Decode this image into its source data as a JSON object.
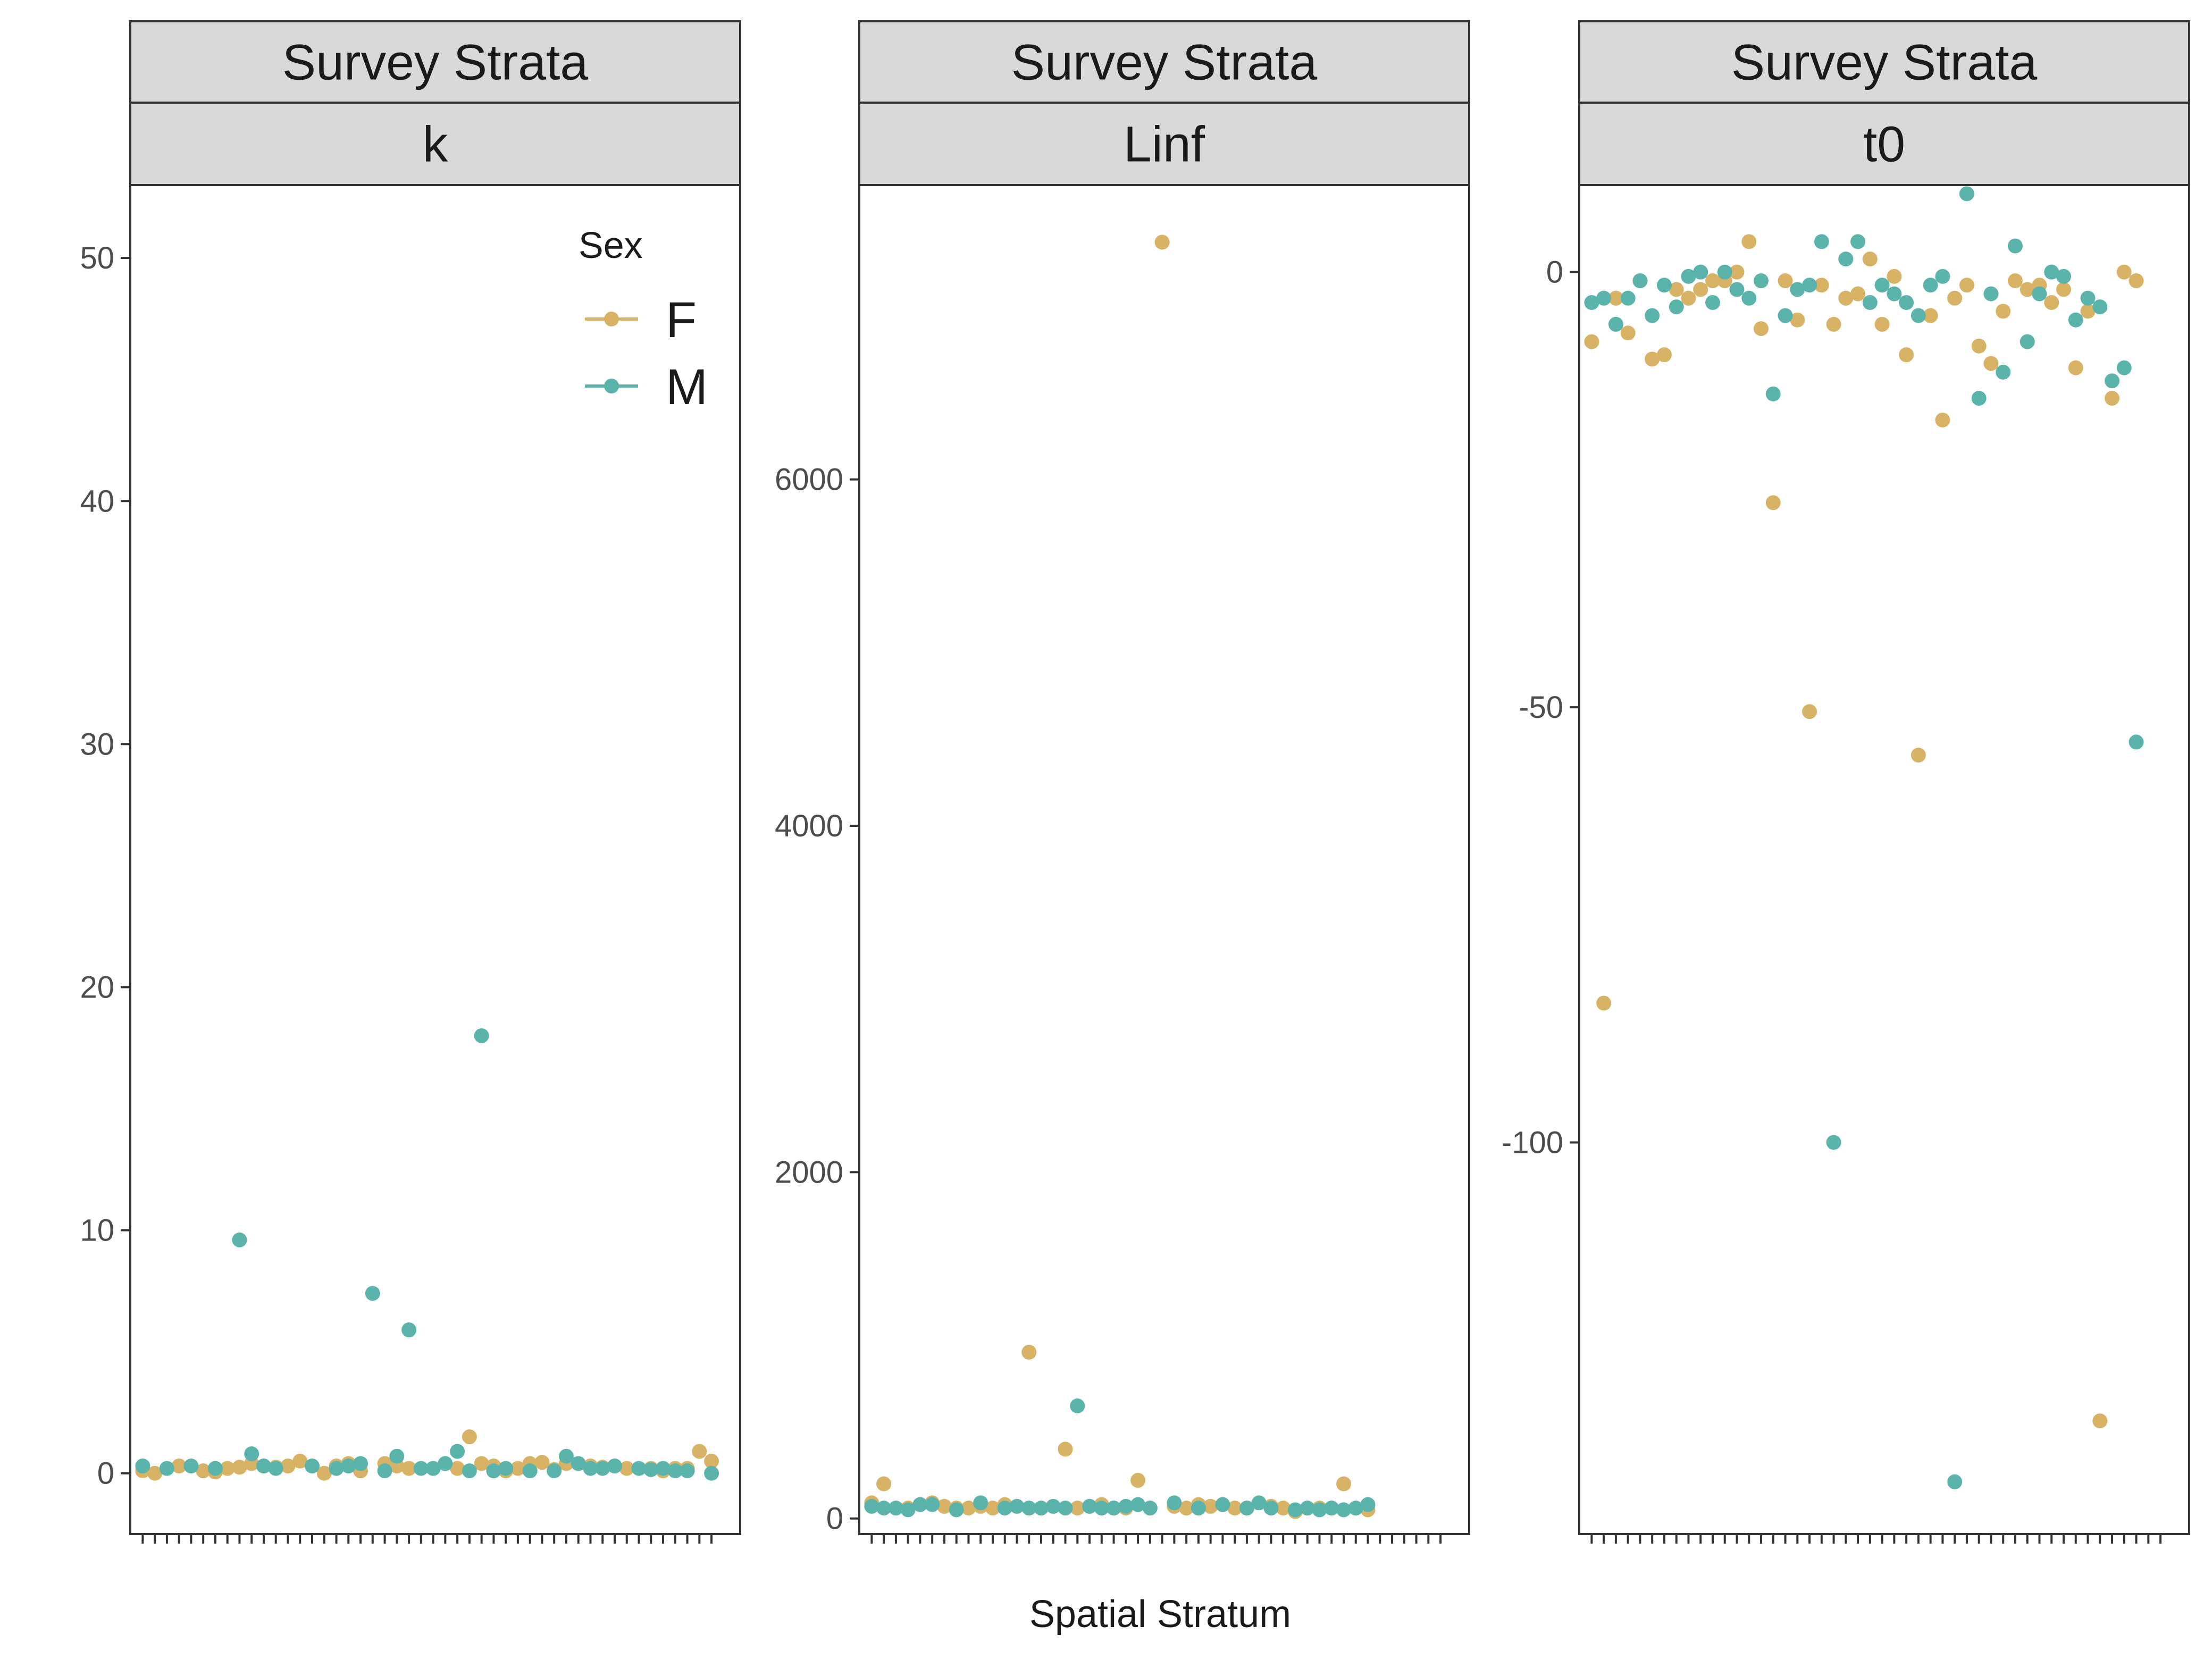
{
  "chart_data": {
    "type": "scatter",
    "xlabel": "Spatial Stratum",
    "legend": {
      "title": "Sex",
      "placement": "top-right",
      "entries": [
        {
          "label": "F",
          "color": "#D8B365"
        },
        {
          "label": "M",
          "color": "#5AB4AC"
        }
      ]
    },
    "panels": [
      {
        "strip_top": "Survey Strata",
        "strip_bottom": "k",
        "ylim": [
          -2.5,
          53
        ],
        "yticks": [
          0,
          10,
          20,
          30,
          40,
          50
        ],
        "series": [
          {
            "name": "F",
            "color": "#D8B365",
            "points": [
              [
                1,
                0.1
              ],
              [
                2,
                0.0
              ],
              [
                4,
                0.3
              ],
              [
                6,
                0.1
              ],
              [
                7,
                0.05
              ],
              [
                8,
                0.2
              ],
              [
                9,
                0.25
              ],
              [
                10,
                0.4
              ],
              [
                11,
                0.3
              ],
              [
                12,
                0.25
              ],
              [
                13,
                0.3
              ],
              [
                14,
                0.5
              ],
              [
                16,
                0.0
              ],
              [
                17,
                0.3
              ],
              [
                18,
                0.4
              ],
              [
                19,
                0.1
              ],
              [
                21,
                0.4
              ],
              [
                22,
                0.3
              ],
              [
                23,
                0.2
              ],
              [
                25,
                0.2
              ],
              [
                27,
                0.2
              ],
              [
                28,
                1.5
              ],
              [
                29,
                0.4
              ],
              [
                30,
                0.3
              ],
              [
                31,
                0.1
              ],
              [
                32,
                0.2
              ],
              [
                33,
                0.4
              ],
              [
                34,
                0.45
              ],
              [
                35,
                0.15
              ],
              [
                36,
                0.4
              ],
              [
                38,
                0.3
              ],
              [
                39,
                0.25
              ],
              [
                40,
                0.3
              ],
              [
                41,
                0.2
              ],
              [
                43,
                0.2
              ],
              [
                44,
                0.1
              ],
              [
                45,
                0.2
              ],
              [
                46,
                0.2
              ],
              [
                47,
                0.9
              ],
              [
                48,
                0.5
              ]
            ]
          },
          {
            "name": "M",
            "color": "#5AB4AC",
            "points": [
              [
                1,
                0.3
              ],
              [
                3,
                0.2
              ],
              [
                5,
                0.3
              ],
              [
                7,
                0.2
              ],
              [
                9,
                9.6
              ],
              [
                10,
                0.8
              ],
              [
                11,
                0.3
              ],
              [
                12,
                0.2
              ],
              [
                15,
                0.3
              ],
              [
                17,
                0.2
              ],
              [
                18,
                0.3
              ],
              [
                19,
                0.4
              ],
              [
                20,
                7.4
              ],
              [
                21,
                0.1
              ],
              [
                22,
                0.7
              ],
              [
                23,
                5.9
              ],
              [
                24,
                0.2
              ],
              [
                25,
                0.2
              ],
              [
                26,
                0.4
              ],
              [
                27,
                0.9
              ],
              [
                28,
                0.1
              ],
              [
                29,
                18.0
              ],
              [
                30,
                0.1
              ],
              [
                31,
                0.2
              ],
              [
                33,
                0.1
              ],
              [
                35,
                0.1
              ],
              [
                36,
                0.7
              ],
              [
                37,
                0.4
              ],
              [
                38,
                0.2
              ],
              [
                39,
                0.2
              ],
              [
                40,
                0.3
              ],
              [
                42,
                0.2
              ],
              [
                43,
                0.15
              ],
              [
                44,
                0.2
              ],
              [
                45,
                0.1
              ],
              [
                46,
                0.1
              ],
              [
                48,
                0.0
              ]
            ]
          }
        ]
      },
      {
        "strip_top": "Survey Strata",
        "strip_bottom": "Linf",
        "ylim": [
          -90,
          7700
        ],
        "yticks": [
          0,
          2000,
          4000,
          6000
        ],
        "series": [
          {
            "name": "F",
            "color": "#D8B365",
            "points": [
              [
                1,
                90
              ],
              [
                2,
                200
              ],
              [
                4,
                60
              ],
              [
                5,
                80
              ],
              [
                6,
                90
              ],
              [
                7,
                70
              ],
              [
                8,
                60
              ],
              [
                9,
                60
              ],
              [
                10,
                70
              ],
              [
                11,
                60
              ],
              [
                12,
                80
              ],
              [
                14,
                960
              ],
              [
                15,
                60
              ],
              [
                16,
                70
              ],
              [
                17,
                400
              ],
              [
                18,
                60
              ],
              [
                19,
                70
              ],
              [
                20,
                80
              ],
              [
                21,
                60
              ],
              [
                22,
                60
              ],
              [
                23,
                220
              ],
              [
                24,
                60
              ],
              [
                25,
                7370
              ],
              [
                26,
                70
              ],
              [
                27,
                60
              ],
              [
                28,
                80
              ],
              [
                29,
                70
              ],
              [
                30,
                80
              ],
              [
                31,
                60
              ],
              [
                32,
                60
              ],
              [
                34,
                70
              ],
              [
                35,
                60
              ],
              [
                36,
                40
              ],
              [
                37,
                60
              ],
              [
                38,
                60
              ],
              [
                39,
                60
              ],
              [
                40,
                200
              ],
              [
                41,
                60
              ],
              [
                42,
                50
              ]
            ]
          },
          {
            "name": "M",
            "color": "#5AB4AC",
            "points": [
              [
                1,
                70
              ],
              [
                2,
                60
              ],
              [
                3,
                60
              ],
              [
                4,
                50
              ],
              [
                5,
                80
              ],
              [
                6,
                80
              ],
              [
                8,
                50
              ],
              [
                10,
                90
              ],
              [
                12,
                60
              ],
              [
                13,
                70
              ],
              [
                14,
                60
              ],
              [
                15,
                60
              ],
              [
                16,
                70
              ],
              [
                17,
                60
              ],
              [
                18,
                650
              ],
              [
                19,
                70
              ],
              [
                20,
                60
              ],
              [
                21,
                60
              ],
              [
                22,
                70
              ],
              [
                23,
                80
              ],
              [
                24,
                60
              ],
              [
                26,
                90
              ],
              [
                28,
                60
              ],
              [
                30,
                80
              ],
              [
                32,
                60
              ],
              [
                33,
                90
              ],
              [
                34,
                60
              ],
              [
                36,
                50
              ],
              [
                37,
                60
              ],
              [
                38,
                50
              ],
              [
                39,
                60
              ],
              [
                40,
                50
              ],
              [
                41,
                60
              ],
              [
                42,
                80
              ]
            ]
          }
        ]
      },
      {
        "strip_top": "Survey Strata",
        "strip_bottom": "t0",
        "ylim": [
          -145,
          10
        ],
        "yticks": [
          -100,
          -50,
          0
        ],
        "series": [
          {
            "name": "F",
            "color": "#D8B365",
            "points": [
              [
                1,
                -8
              ],
              [
                2,
                -84
              ],
              [
                3,
                -3
              ],
              [
                4,
                -7
              ],
              [
                5,
                -1
              ],
              [
                6,
                -10
              ],
              [
                7,
                -9.5
              ],
              [
                8,
                -2
              ],
              [
                9,
                -3
              ],
              [
                10,
                -2
              ],
              [
                11,
                -1
              ],
              [
                12,
                -1
              ],
              [
                13,
                0
              ],
              [
                14,
                3.5
              ],
              [
                15,
                -6.5
              ],
              [
                16,
                -26.5
              ],
              [
                17,
                -1
              ],
              [
                18,
                -5.5
              ],
              [
                19,
                -50.5
              ],
              [
                20,
                -1.5
              ],
              [
                21,
                -6
              ],
              [
                22,
                -3
              ],
              [
                23,
                -2.5
              ],
              [
                24,
                1.5
              ],
              [
                25,
                -6
              ],
              [
                26,
                -0.5
              ],
              [
                27,
                -9.5
              ],
              [
                28,
                -55.5
              ],
              [
                29,
                -5
              ],
              [
                30,
                -17
              ],
              [
                31,
                -3
              ],
              [
                32,
                -1.5
              ],
              [
                33,
                -8.5
              ],
              [
                34,
                -10.5
              ],
              [
                35,
                -4.5
              ],
              [
                36,
                -1
              ],
              [
                37,
                -2
              ],
              [
                38,
                -1.5
              ],
              [
                39,
                -3.5
              ],
              [
                40,
                -2
              ],
              [
                41,
                -11
              ],
              [
                42,
                -4.5
              ],
              [
                43,
                -132
              ],
              [
                44,
                -14.5
              ],
              [
                45,
                0
              ],
              [
                46,
                -1
              ]
            ]
          },
          {
            "name": "M",
            "color": "#5AB4AC",
            "points": [
              [
                1,
                -3.5
              ],
              [
                2,
                -3
              ],
              [
                3,
                -6
              ],
              [
                4,
                -3
              ],
              [
                5,
                -1
              ],
              [
                6,
                -5
              ],
              [
                7,
                -1.5
              ],
              [
                8,
                -4
              ],
              [
                9,
                -0.5
              ],
              [
                10,
                0
              ],
              [
                11,
                -3.5
              ],
              [
                12,
                0
              ],
              [
                13,
                -2
              ],
              [
                14,
                -3
              ],
              [
                15,
                -1
              ],
              [
                16,
                -14
              ],
              [
                17,
                -5
              ],
              [
                18,
                -2
              ],
              [
                19,
                -1.5
              ],
              [
                20,
                3.5
              ],
              [
                21,
                -100
              ],
              [
                22,
                1.5
              ],
              [
                23,
                3.5
              ],
              [
                24,
                -3.5
              ],
              [
                25,
                -1.5
              ],
              [
                26,
                -2.5
              ],
              [
                27,
                -3.5
              ],
              [
                28,
                -5
              ],
              [
                29,
                -1.5
              ],
              [
                30,
                -0.5
              ],
              [
                31,
                -139
              ],
              [
                32,
                9
              ],
              [
                33,
                -14.5
              ],
              [
                34,
                -2.5
              ],
              [
                35,
                -11.5
              ],
              [
                36,
                3
              ],
              [
                37,
                -8
              ],
              [
                38,
                -2.5
              ],
              [
                39,
                0
              ],
              [
                40,
                -0.5
              ],
              [
                41,
                -5.5
              ],
              [
                42,
                -3
              ],
              [
                43,
                -4
              ],
              [
                44,
                -12.5
              ],
              [
                45,
                -11
              ],
              [
                46,
                -54
              ]
            ]
          }
        ]
      }
    ]
  }
}
